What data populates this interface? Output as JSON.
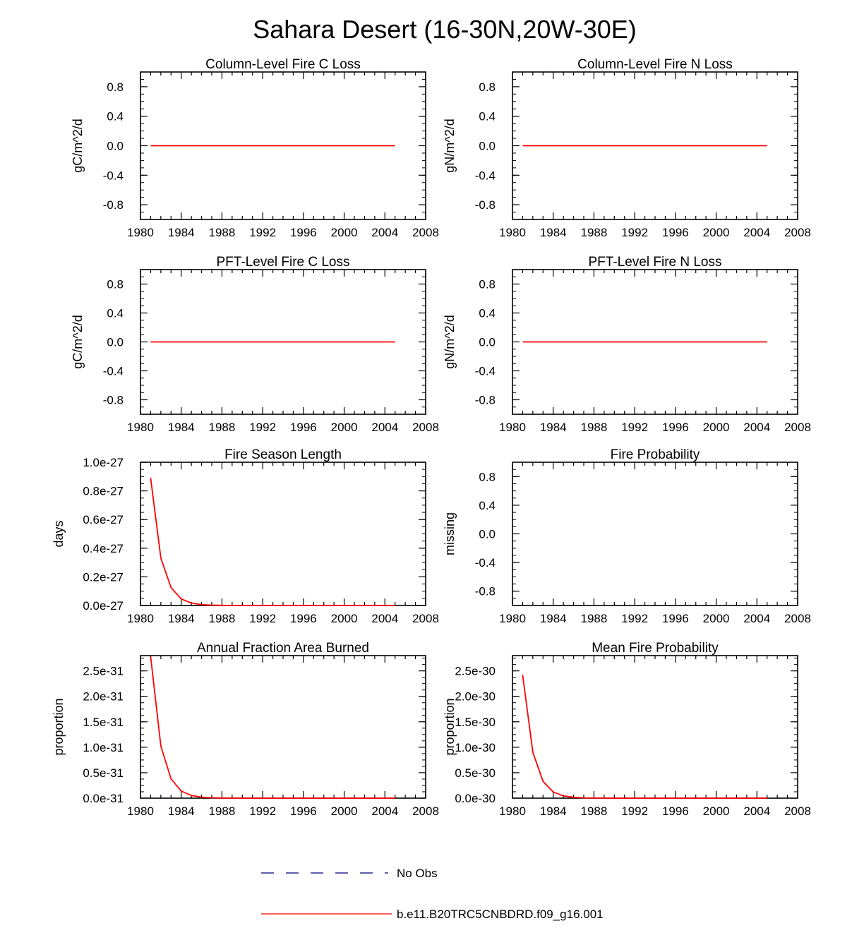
{
  "figure_title": "Sahara Desert (16-30N,20W-30E)",
  "colors": {
    "model": "#ff0000",
    "obs": "#000080",
    "axis": "#000000"
  },
  "chart_data": [
    {
      "type": "line",
      "title": "Column-Level Fire C Loss",
      "ylabel": "gC/m^2/d",
      "xlim": [
        1980,
        2008
      ],
      "ylim": [
        -1.0,
        1.0
      ],
      "xticks": [
        1980,
        1984,
        1988,
        1992,
        1996,
        2000,
        2004,
        2008
      ],
      "yticks": [
        -0.8,
        -0.4,
        0.0,
        0.4,
        0.8
      ],
      "ytick_labels": [
        "-0.8",
        "-0.4",
        "0.0",
        "0.4",
        "0.8"
      ],
      "series": [
        {
          "name": "b.e11.B20TRC5CNBDRD.f09_g16.001",
          "x": [
            1981,
            1982,
            1983,
            1984,
            1985,
            1986,
            1987,
            1988,
            1989,
            1990,
            1991,
            1992,
            1993,
            1994,
            1995,
            1996,
            1997,
            1998,
            1999,
            2000,
            2001,
            2002,
            2003,
            2004,
            2005
          ],
          "y": [
            0,
            0,
            0,
            0,
            0,
            0,
            0,
            0,
            0,
            0,
            0,
            0,
            0,
            0,
            0,
            0,
            0,
            0,
            0,
            0,
            0,
            0,
            0,
            0,
            0
          ]
        }
      ]
    },
    {
      "type": "line",
      "title": "Column-Level Fire N Loss",
      "ylabel": "gN/m^2/d",
      "xlim": [
        1980,
        2008
      ],
      "ylim": [
        -1.0,
        1.0
      ],
      "xticks": [
        1980,
        1984,
        1988,
        1992,
        1996,
        2000,
        2004,
        2008
      ],
      "yticks": [
        -0.8,
        -0.4,
        0.0,
        0.4,
        0.8
      ],
      "ytick_labels": [
        "-0.8",
        "-0.4",
        "0.0",
        "0.4",
        "0.8"
      ],
      "series": [
        {
          "name": "b.e11.B20TRC5CNBDRD.f09_g16.001",
          "x": [
            1981,
            1982,
            1983,
            1984,
            1985,
            1986,
            1987,
            1988,
            1989,
            1990,
            1991,
            1992,
            1993,
            1994,
            1995,
            1996,
            1997,
            1998,
            1999,
            2000,
            2001,
            2002,
            2003,
            2004,
            2005
          ],
          "y": [
            0,
            0,
            0,
            0,
            0,
            0,
            0,
            0,
            0,
            0,
            0,
            0,
            0,
            0,
            0,
            0,
            0,
            0,
            0,
            0,
            0,
            0,
            0,
            0,
            0
          ]
        }
      ]
    },
    {
      "type": "line",
      "title": "PFT-Level Fire C Loss",
      "ylabel": "gC/m^2/d",
      "xlim": [
        1980,
        2008
      ],
      "ylim": [
        -1.0,
        1.0
      ],
      "xticks": [
        1980,
        1984,
        1988,
        1992,
        1996,
        2000,
        2004,
        2008
      ],
      "yticks": [
        -0.8,
        -0.4,
        0.0,
        0.4,
        0.8
      ],
      "ytick_labels": [
        "-0.8",
        "-0.4",
        "0.0",
        "0.4",
        "0.8"
      ],
      "series": [
        {
          "name": "b.e11.B20TRC5CNBDRD.f09_g16.001",
          "x": [
            1981,
            1982,
            1983,
            1984,
            1985,
            1986,
            1987,
            1988,
            1989,
            1990,
            1991,
            1992,
            1993,
            1994,
            1995,
            1996,
            1997,
            1998,
            1999,
            2000,
            2001,
            2002,
            2003,
            2004,
            2005
          ],
          "y": [
            0,
            0,
            0,
            0,
            0,
            0,
            0,
            0,
            0,
            0,
            0,
            0,
            0,
            0,
            0,
            0,
            0,
            0,
            0,
            0,
            0,
            0,
            0,
            0,
            0
          ]
        }
      ]
    },
    {
      "type": "line",
      "title": "PFT-Level Fire N Loss",
      "ylabel": "gN/m^2/d",
      "xlim": [
        1980,
        2008
      ],
      "ylim": [
        -1.0,
        1.0
      ],
      "xticks": [
        1980,
        1984,
        1988,
        1992,
        1996,
        2000,
        2004,
        2008
      ],
      "yticks": [
        -0.8,
        -0.4,
        0.0,
        0.4,
        0.8
      ],
      "ytick_labels": [
        "-0.8",
        "-0.4",
        "0.0",
        "0.4",
        "0.8"
      ],
      "series": [
        {
          "name": "b.e11.B20TRC5CNBDRD.f09_g16.001",
          "x": [
            1981,
            1982,
            1983,
            1984,
            1985,
            1986,
            1987,
            1988,
            1989,
            1990,
            1991,
            1992,
            1993,
            1994,
            1995,
            1996,
            1997,
            1998,
            1999,
            2000,
            2001,
            2002,
            2003,
            2004,
            2005
          ],
          "y": [
            0,
            0,
            0,
            0,
            0,
            0,
            0,
            0,
            0,
            0,
            0,
            0,
            0,
            0,
            0,
            0,
            0,
            0,
            0,
            0,
            0,
            0,
            0,
            0,
            0
          ]
        }
      ]
    },
    {
      "type": "line",
      "title": "Fire Season Length",
      "ylabel": "days",
      "xlim": [
        1980,
        2008
      ],
      "ylim": [
        0,
        1.0
      ],
      "xticks": [
        1980,
        1984,
        1988,
        1992,
        1996,
        2000,
        2004,
        2008
      ],
      "yticks": [
        0,
        0.2,
        0.4,
        0.6,
        0.8,
        1.0
      ],
      "ytick_labels": [
        "0.0e-27",
        "0.2e-27",
        "0.4e-27",
        "0.6e-27",
        "0.8e-27",
        "1.0e-27"
      ],
      "y_scale_note": "values in units of 1e-27",
      "series": [
        {
          "name": "b.e11.B20TRC5CNBDRD.f09_g16.001",
          "x": [
            1981,
            1982,
            1983,
            1984,
            1985,
            1986,
            1987,
            1988,
            1989,
            1990,
            1991,
            1992,
            1993,
            1994,
            1995,
            1996,
            1997,
            1998,
            1999,
            2000,
            2001,
            2002,
            2003,
            2004,
            2005
          ],
          "y": [
            0.89,
            0.33,
            0.125,
            0.046,
            0.017,
            0.006,
            0.0023,
            0.001,
            0,
            0,
            0,
            0,
            0,
            0,
            0,
            0,
            0,
            0,
            0,
            0,
            0,
            0,
            0,
            0,
            0
          ]
        }
      ]
    },
    {
      "type": "line",
      "title": "Fire Probability",
      "ylabel": "missing",
      "xlim": [
        1980,
        2008
      ],
      "ylim": [
        -1.0,
        1.0
      ],
      "xticks": [
        1980,
        1984,
        1988,
        1992,
        1996,
        2000,
        2004,
        2008
      ],
      "yticks": [
        -0.8,
        -0.4,
        0.0,
        0.4,
        0.8
      ],
      "ytick_labels": [
        "-0.8",
        "-0.4",
        "0.0",
        "0.4",
        "0.8"
      ],
      "series": []
    },
    {
      "type": "line",
      "title": "Annual Fraction Area Burned",
      "ylabel": "proportion",
      "xlim": [
        1980,
        2008
      ],
      "ylim": [
        0,
        2.8
      ],
      "xticks": [
        1980,
        1984,
        1988,
        1992,
        1996,
        2000,
        2004,
        2008
      ],
      "yticks": [
        0,
        0.5,
        1.0,
        1.5,
        2.0,
        2.5
      ],
      "ytick_labels": [
        "0.0e-31",
        "0.5e-31",
        "1.0e-31",
        "1.5e-31",
        "2.0e-31",
        "2.5e-31"
      ],
      "y_scale_note": "values in units of 1e-31",
      "series": [
        {
          "name": "b.e11.B20TRC5CNBDRD.f09_g16.001",
          "x": [
            1981,
            1982,
            1983,
            1984,
            1985,
            1986,
            1987,
            1988,
            1989,
            1990,
            1991,
            1992,
            1993,
            1994,
            1995,
            1996,
            1997,
            1998,
            1999,
            2000,
            2001,
            2002,
            2003,
            2004,
            2005
          ],
          "y": [
            2.78,
            1.02,
            0.38,
            0.14,
            0.052,
            0.019,
            0.007,
            0.0026,
            0.001,
            0,
            0,
            0,
            0,
            0,
            0,
            0,
            0,
            0,
            0,
            0,
            0,
            0,
            0,
            0,
            0
          ]
        }
      ]
    },
    {
      "type": "line",
      "title": "Mean Fire Probability",
      "ylabel": "proportion",
      "xlim": [
        1980,
        2008
      ],
      "ylim": [
        0,
        2.8
      ],
      "xticks": [
        1980,
        1984,
        1988,
        1992,
        1996,
        2000,
        2004,
        2008
      ],
      "yticks": [
        0,
        0.5,
        1.0,
        1.5,
        2.0,
        2.5
      ],
      "ytick_labels": [
        "0.0e-30",
        "0.5e-30",
        "1.0e-30",
        "1.5e-30",
        "2.0e-30",
        "2.5e-30"
      ],
      "y_scale_note": "values in units of 1e-30",
      "series": [
        {
          "name": "b.e11.B20TRC5CNBDRD.f09_g16.001",
          "x": [
            1981,
            1982,
            1983,
            1984,
            1985,
            1986,
            1987,
            1988,
            1989,
            1990,
            1991,
            1992,
            1993,
            1994,
            1995,
            1996,
            1997,
            1998,
            1999,
            2000,
            2001,
            2002,
            2003,
            2004,
            2005
          ],
          "y": [
            2.42,
            0.9,
            0.33,
            0.12,
            0.045,
            0.017,
            0.006,
            0.0023,
            0.001,
            0,
            0,
            0,
            0,
            0,
            0,
            0,
            0,
            0,
            0,
            0,
            0,
            0,
            0,
            0,
            0
          ]
        }
      ]
    }
  ],
  "legend": {
    "entries": [
      {
        "label": "No Obs",
        "style": "dashed",
        "color": "#000080"
      },
      {
        "label": "b.e11.B20TRC5CNBDRD.f09_g16.001",
        "style": "solid",
        "color": "#ff0000"
      }
    ]
  }
}
